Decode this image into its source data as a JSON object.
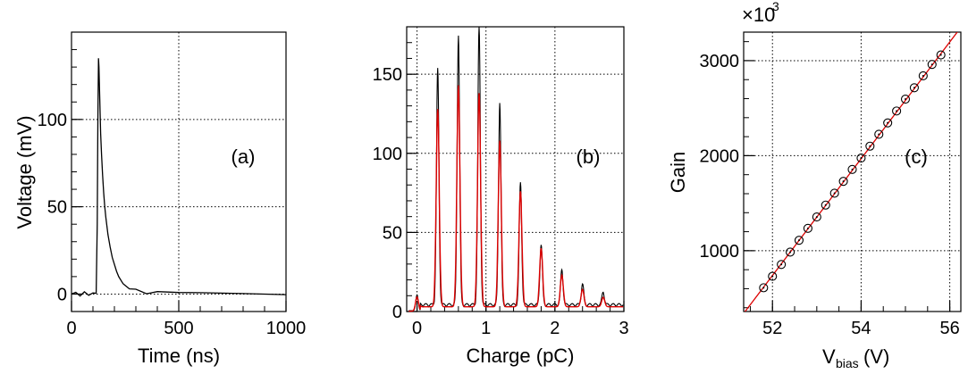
{
  "colors": {
    "data": "#000000",
    "fit": "#dd0000",
    "grid": "#000000",
    "background": "#ffffff"
  },
  "chart_data": [
    {
      "type": "line",
      "panel_label": "(a)",
      "xlabel": "Time (ns)",
      "ylabel": "Voltage (mV)",
      "xlim": [
        0,
        1000
      ],
      "ylim": [
        -10,
        150
      ],
      "xticks": [
        0,
        500,
        1000
      ],
      "xtick_labels": [
        "0",
        "500",
        "1000"
      ],
      "yticks": [
        0,
        50,
        100
      ],
      "ytick_labels": [
        "0",
        "50",
        "100"
      ],
      "grid": true,
      "series": [
        {
          "x": [
            0,
            20,
            40,
            60,
            80,
            100,
            115,
            120,
            123,
            126,
            128,
            132,
            136,
            140,
            145,
            150,
            155,
            160,
            170,
            180,
            190,
            200,
            210,
            220,
            230,
            240,
            250,
            270,
            300,
            350,
            400,
            500,
            600,
            700,
            800,
            900,
            1000
          ],
          "y": [
            0,
            0.5,
            -0.3,
            0.4,
            0,
            0.3,
            0.5,
            40,
            100,
            135,
            130,
            110,
            92,
            80,
            68,
            58,
            50,
            44,
            34,
            27,
            21,
            17,
            13,
            10,
            8,
            6,
            5,
            3,
            2,
            1,
            0.5,
            0,
            0,
            0,
            0,
            0,
            0
          ]
        }
      ]
    },
    {
      "type": "line",
      "panel_label": "(b)",
      "xlabel": "Charge (pC)",
      "ylabel": "",
      "xlim": [
        -0.15,
        3
      ],
      "ylim": [
        0,
        180
      ],
      "xticks": [
        0,
        1,
        2,
        3
      ],
      "xtick_labels": [
        "0",
        "1",
        "2",
        "3"
      ],
      "yticks": [
        0,
        50,
        100,
        150
      ],
      "ytick_labels": [
        "0",
        "50",
        "100",
        "150"
      ],
      "grid": true,
      "series": [
        {
          "role": "data",
          "peaks": [
            [
              0.0,
              10
            ],
            [
              0.3,
              149
            ],
            [
              0.6,
              171
            ],
            [
              0.9,
              176
            ],
            [
              1.2,
              128
            ],
            [
              1.5,
              77
            ],
            [
              1.8,
              38
            ],
            [
              2.1,
              22
            ],
            [
              2.4,
              13
            ],
            [
              2.7,
              8
            ]
          ]
        },
        {
          "role": "fit",
          "peaks": [
            [
              0.0,
              9
            ],
            [
              0.3,
              125
            ],
            [
              0.6,
              140
            ],
            [
              0.9,
              135
            ],
            [
              1.2,
              105
            ],
            [
              1.5,
              73
            ],
            [
              1.8,
              37
            ],
            [
              2.1,
              20
            ],
            [
              2.4,
              11
            ],
            [
              2.7,
              6
            ]
          ]
        }
      ]
    },
    {
      "type": "scatter",
      "panel_label": "(c)",
      "xlabel_main": "V",
      "xlabel_sub": "bias",
      "xlabel_unit": "(V)",
      "ylabel": "Gain",
      "scale_prefix": "×10",
      "scale_exp": "3",
      "xlim": [
        51.35,
        56.25
      ],
      "ylim": [
        360,
        3300
      ],
      "xticks": [
        52,
        54,
        56
      ],
      "xtick_labels": [
        "52",
        "54",
        "56"
      ],
      "yticks": [
        1000,
        2000,
        3000
      ],
      "ytick_labels": [
        "1000",
        "2000",
        "3000"
      ],
      "grid": true,
      "series": [
        {
          "role": "points",
          "x": [
            51.8,
            52.0,
            52.2,
            52.4,
            52.6,
            52.8,
            53.0,
            53.2,
            53.4,
            53.6,
            53.8,
            54.0,
            54.2,
            54.4,
            54.6,
            54.8,
            55.0,
            55.2,
            55.4,
            55.6,
            55.8
          ],
          "y": [
            610,
            730,
            855,
            985,
            1110,
            1235,
            1355,
            1480,
            1605,
            1730,
            1855,
            1975,
            2100,
            2225,
            2345,
            2470,
            2595,
            2715,
            2840,
            2960,
            3060
          ]
        },
        {
          "role": "fit",
          "x": [
            51.35,
            56.25
          ],
          "y": [
            340,
            3350
          ]
        }
      ]
    }
  ]
}
